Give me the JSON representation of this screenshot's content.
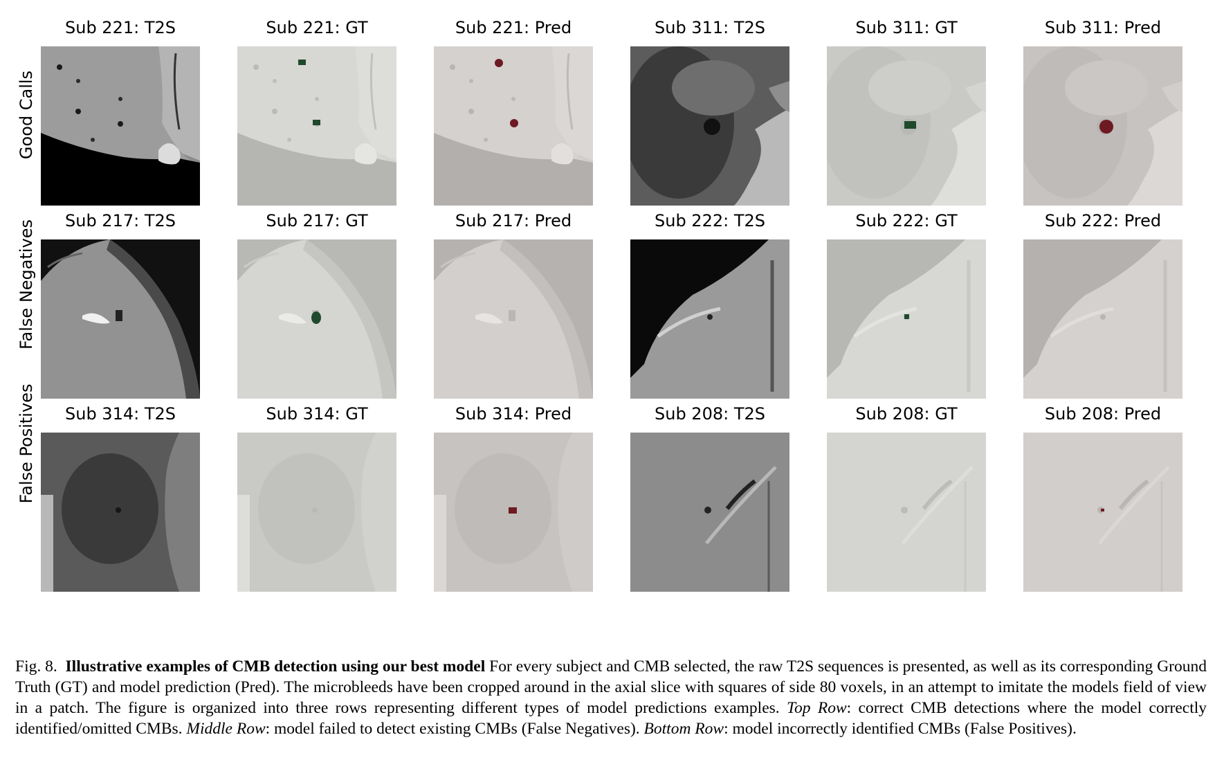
{
  "rows": [
    {
      "label": "Good Calls",
      "panels": [
        {
          "title": "Sub 221: T2S",
          "kind": "t2s",
          "variant": "a"
        },
        {
          "title": "Sub 221: GT",
          "kind": "gt",
          "variant": "a"
        },
        {
          "title": "Sub 221: Pred",
          "kind": "pred",
          "variant": "a"
        },
        {
          "title": "Sub 311: T2S",
          "kind": "t2s",
          "variant": "b"
        },
        {
          "title": "Sub 311: GT",
          "kind": "gt",
          "variant": "b"
        },
        {
          "title": "Sub 311: Pred",
          "kind": "pred",
          "variant": "b"
        }
      ]
    },
    {
      "label": "False Negatives",
      "panels": [
        {
          "title": "Sub 217: T2S",
          "kind": "t2s",
          "variant": "c"
        },
        {
          "title": "Sub 217: GT",
          "kind": "gt",
          "variant": "c"
        },
        {
          "title": "Sub 217: Pred",
          "kind": "pred",
          "variant": "c"
        },
        {
          "title": "Sub 222: T2S",
          "kind": "t2s",
          "variant": "d"
        },
        {
          "title": "Sub 222: GT",
          "kind": "gt",
          "variant": "d"
        },
        {
          "title": "Sub 222: Pred",
          "kind": "pred",
          "variant": "d"
        }
      ]
    },
    {
      "label": "False Positives",
      "panels": [
        {
          "title": "Sub 314: T2S",
          "kind": "t2s",
          "variant": "e"
        },
        {
          "title": "Sub 314: GT",
          "kind": "gt",
          "variant": "e"
        },
        {
          "title": "Sub 314: Pred",
          "kind": "pred",
          "variant": "e"
        },
        {
          "title": "Sub 208: T2S",
          "kind": "t2s",
          "variant": "f"
        },
        {
          "title": "Sub 208: GT",
          "kind": "gt",
          "variant": "f"
        },
        {
          "title": "Sub 208: Pred",
          "kind": "pred",
          "variant": "f"
        }
      ]
    }
  ],
  "colors": {
    "gt_marker": "#1f4a2c",
    "pred_marker": "#6e1a22",
    "gt_overlay": "#e8e8e4",
    "pred_overlay": "#e6e0dc"
  },
  "caption": {
    "fig_label": "Fig. 8.",
    "title_bold": "Illustrative examples of CMB detection using our best model",
    "text_1": " For every subject and CMB selected, the raw T2S sequences is presented, as well as its corresponding Ground Truth (GT) and model prediction (Pred). The microbleeds have been cropped around in the axial slice with squares of side 80 voxels, in an attempt to imitate the models field of view in a patch. The figure is organized into three rows representing different types of model predictions examples. ",
    "top_row_label": "Top Row",
    "top_row_text": ": correct CMB detections where the model correctly identified/omitted CMBs. ",
    "middle_row_label": "Middle Row",
    "middle_row_text": ": model failed to detect existing CMBs (False Negatives). ",
    "bottom_row_label": "Bottom Row",
    "bottom_row_text": ": model incorrectly identified CMBs (False Positives)."
  }
}
